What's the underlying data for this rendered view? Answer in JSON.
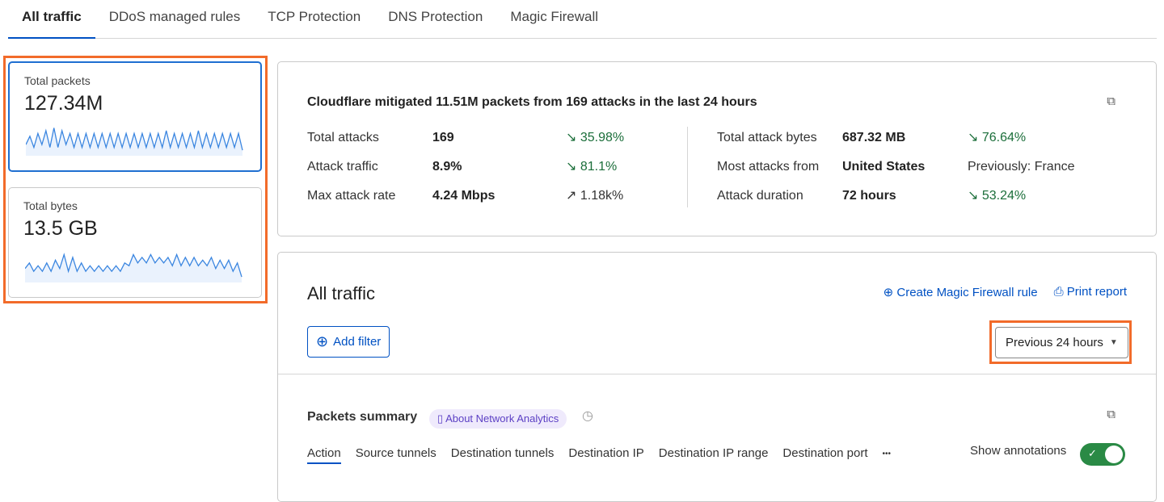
{
  "tabs": [
    "All traffic",
    "DDoS managed rules",
    "TCP Protection",
    "DNS Protection",
    "Magic Firewall"
  ],
  "cards": [
    {
      "label": "Total packets",
      "value": "127.34M",
      "spark": [
        4,
        7,
        3,
        8,
        4,
        9,
        3,
        10,
        3,
        9,
        4,
        8,
        3,
        8,
        3,
        8,
        3,
        8,
        3,
        8,
        3,
        8,
        3,
        8,
        3,
        8,
        3,
        8,
        3,
        8,
        3,
        8,
        3,
        8,
        3,
        9,
        3,
        8,
        3,
        8,
        3,
        8,
        3,
        9,
        3,
        8,
        3,
        8,
        3,
        8,
        3,
        8,
        3,
        8,
        2
      ]
    },
    {
      "label": "Total bytes",
      "value": "13.5 GB",
      "spark": [
        5,
        7,
        4,
        6,
        4,
        7,
        4,
        8,
        5,
        10,
        4,
        9,
        4,
        7,
        4,
        6,
        4,
        6,
        4,
        6,
        4,
        6,
        4,
        7,
        6,
        10,
        7,
        9,
        7,
        10,
        7,
        9,
        7,
        9,
        6,
        10,
        6,
        9,
        6,
        9,
        6,
        8,
        6,
        9,
        5,
        8,
        5,
        8,
        4,
        7,
        2
      ]
    }
  ],
  "summary": {
    "headline": "Cloudflare mitigated 11.51M packets from 169 attacks in the last 24 hours",
    "left": [
      {
        "key": "Total attacks",
        "value": "169",
        "delta": "35.98%",
        "dir": "down"
      },
      {
        "key": "Attack traffic",
        "value": "8.9%",
        "delta": "81.1%",
        "dir": "down"
      },
      {
        "key": "Max attack rate",
        "value": "4.24 Mbps",
        "delta": "1.18k%",
        "dir": "up"
      }
    ],
    "right": [
      {
        "key": "Total attack bytes",
        "value": "687.32 MB",
        "delta": "76.64%",
        "dir": "down"
      },
      {
        "key": "Most attacks from",
        "value": "United States",
        "delta": "Previously: France",
        "dir": "none"
      },
      {
        "key": "Attack duration",
        "value": "72 hours",
        "delta": "53.24%",
        "dir": "down"
      }
    ]
  },
  "traffic": {
    "title": "All traffic",
    "create_rule": "Create Magic Firewall rule",
    "print": "Print report",
    "add_filter": "Add filter",
    "range": "Previous 24 hours",
    "packets_title": "Packets summary",
    "about": "About Network Analytics",
    "subtabs": [
      "Action",
      "Source tunnels",
      "Destination tunnels",
      "Destination IP",
      "Destination IP range",
      "Destination port"
    ],
    "annotations_label": "Show annotations",
    "annotations_on": true
  },
  "colors": {
    "accent": "#0051c3",
    "highlight": "#f26b2a",
    "positive": "#1b6e3a",
    "toggle": "#2a8a45"
  }
}
